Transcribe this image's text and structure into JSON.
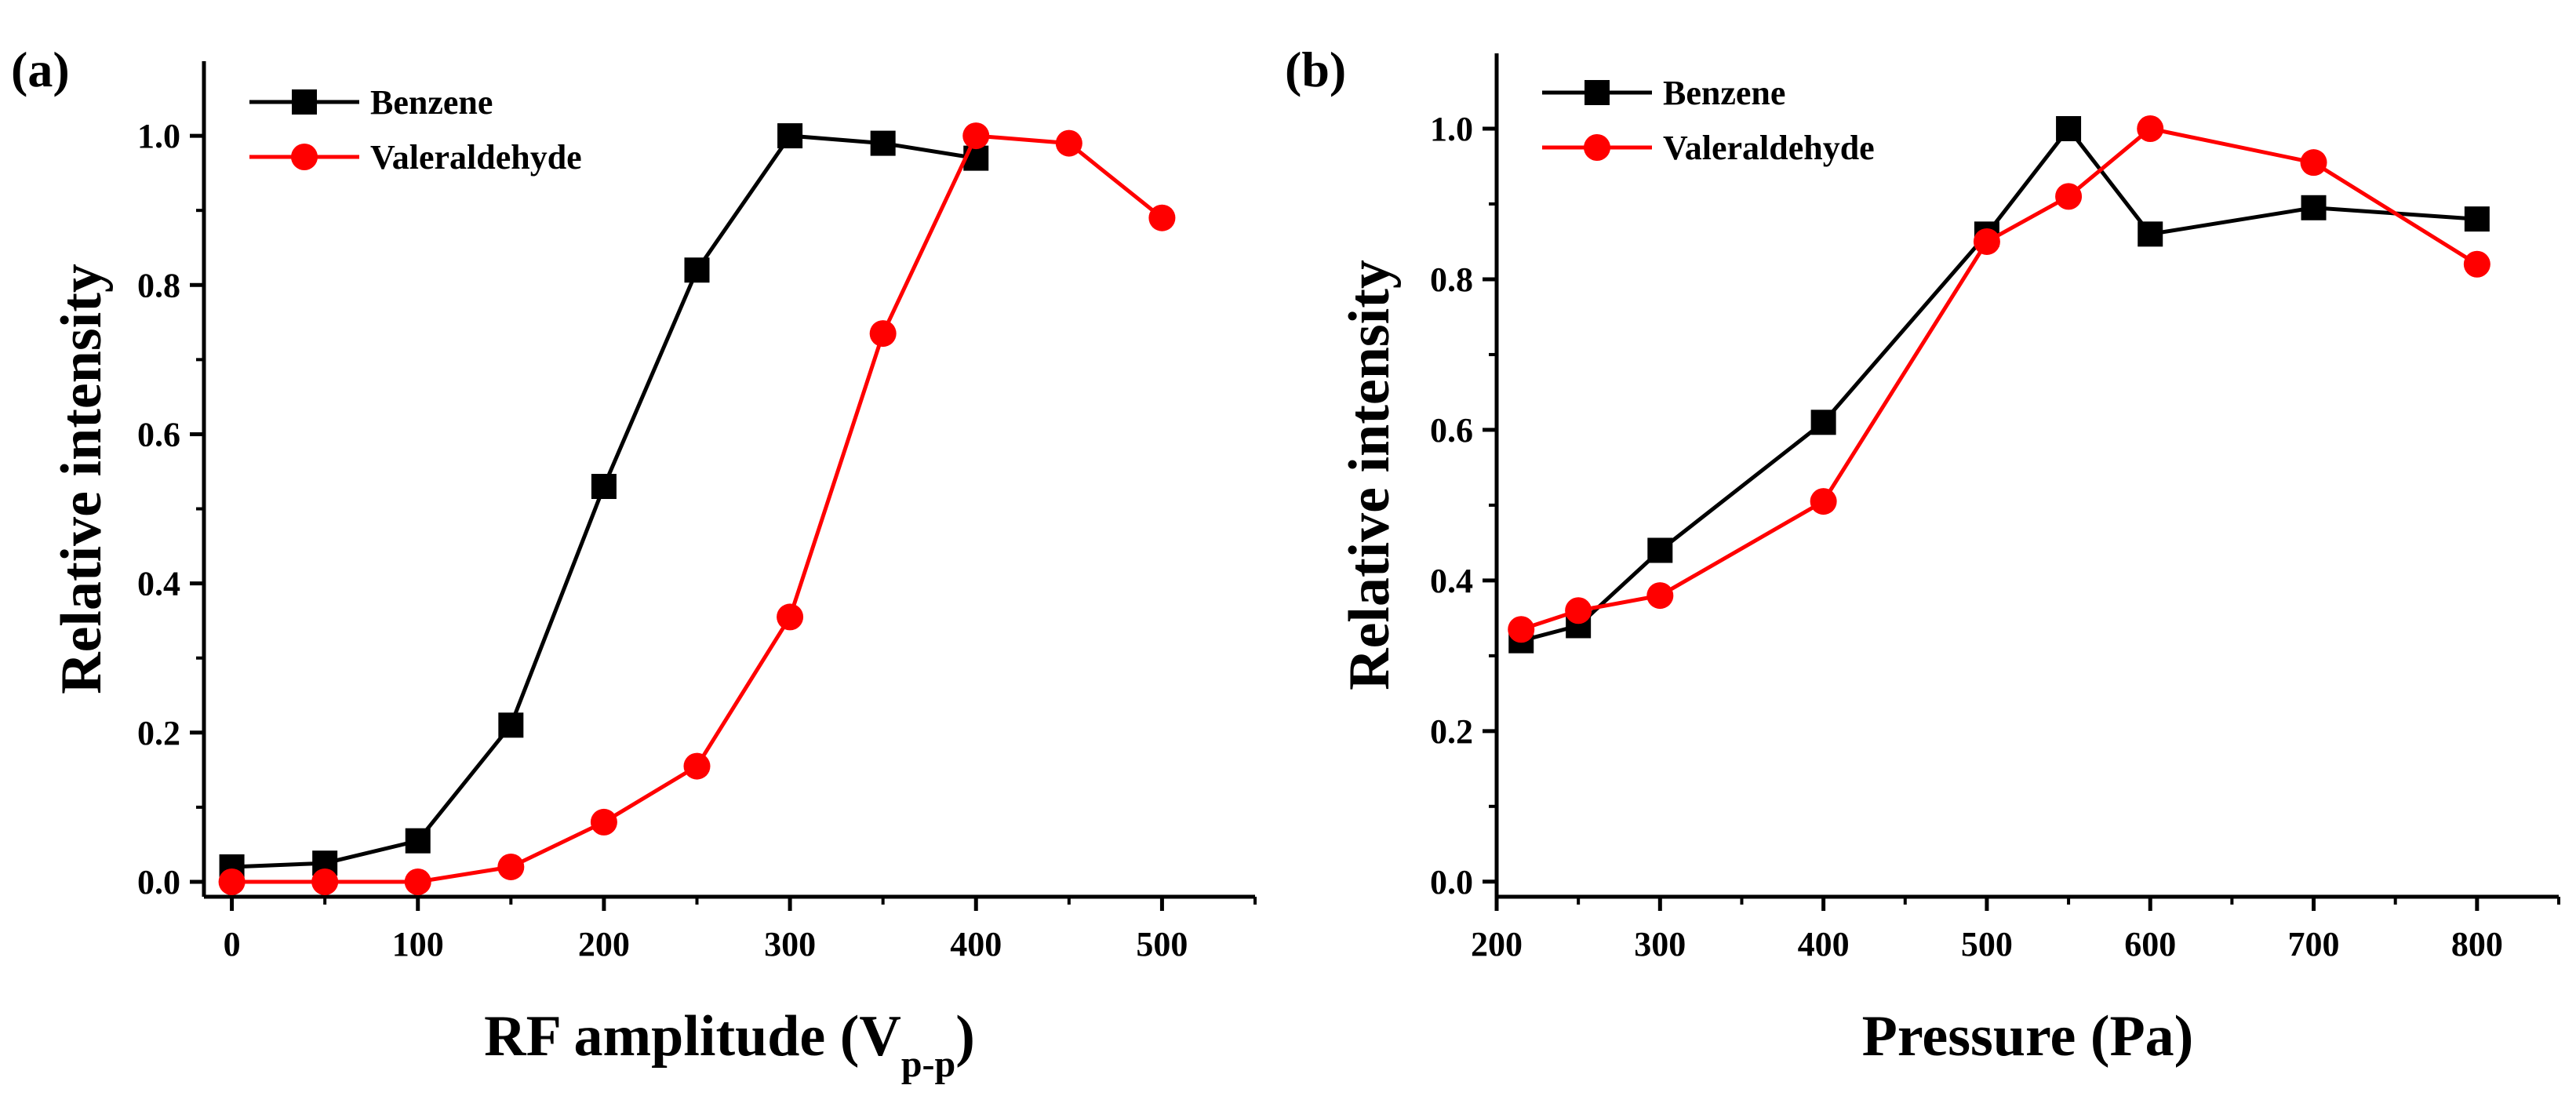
{
  "chart_data": [
    {
      "panel": "(a)",
      "type": "line",
      "xlabel": "RF amplitude (V",
      "xlabel_subscript": "p-p",
      "xlabel_close": ")",
      "ylabel": "Relative intensity",
      "xlim": [
        -15,
        550
      ],
      "ylim": [
        -0.02,
        1.1
      ],
      "xticks": [
        0,
        100,
        200,
        300,
        400,
        500
      ],
      "yticks": [
        0.0,
        0.2,
        0.4,
        0.6,
        0.8,
        1.0
      ],
      "xtick_labels": [
        "0",
        "100",
        "200",
        "300",
        "400",
        "500"
      ],
      "ytick_labels": [
        "0.0",
        "0.2",
        "0.4",
        "0.6",
        "0.8",
        "1.0"
      ],
      "legend_position": "top-left",
      "series": [
        {
          "name": "Benzene",
          "color": "#000000",
          "marker": "square",
          "x": [
            0,
            50,
            100,
            150,
            200,
            250,
            300,
            350,
            400
          ],
          "y": [
            0.02,
            0.025,
            0.055,
            0.21,
            0.53,
            0.82,
            1.0,
            0.99,
            0.97
          ]
        },
        {
          "name": "Valeraldehyde",
          "color": "#ff0000",
          "marker": "circle",
          "x": [
            0,
            50,
            100,
            150,
            200,
            250,
            300,
            350,
            400,
            450,
            500
          ],
          "y": [
            0.0,
            0.0,
            0.0,
            0.02,
            0.08,
            0.155,
            0.355,
            0.735,
            1.0,
            0.99,
            0.89
          ]
        }
      ]
    },
    {
      "panel": "(b)",
      "type": "line",
      "xlabel": "Pressure (Pa)",
      "xlabel_subscript": "",
      "xlabel_close": "",
      "ylabel": "Relative intensity",
      "xlim": [
        200,
        850
      ],
      "ylim": [
        -0.02,
        1.1
      ],
      "xticks": [
        200,
        300,
        400,
        500,
        600,
        700,
        800
      ],
      "yticks": [
        0.0,
        0.2,
        0.4,
        0.6,
        0.8,
        1.0
      ],
      "xtick_labels": [
        "200",
        "300",
        "400",
        "500",
        "600",
        "700",
        "800"
      ],
      "ytick_labels": [
        "0.0",
        "0.2",
        "0.4",
        "0.6",
        "0.8",
        "1.0"
      ],
      "legend_position": "top-left",
      "series": [
        {
          "name": "Benzene",
          "color": "#000000",
          "marker": "square",
          "x": [
            215,
            250,
            300,
            400,
            500,
            550,
            600,
            700,
            800
          ],
          "y": [
            0.32,
            0.34,
            0.44,
            0.61,
            0.86,
            1.0,
            0.86,
            0.895,
            0.88
          ]
        },
        {
          "name": "Valeraldehyde",
          "color": "#ff0000",
          "marker": "circle",
          "x": [
            215,
            250,
            300,
            400,
            500,
            550,
            600,
            700,
            800
          ],
          "y": [
            0.335,
            0.36,
            0.38,
            0.505,
            0.85,
            0.91,
            1.0,
            0.955,
            0.82
          ]
        }
      ]
    }
  ]
}
